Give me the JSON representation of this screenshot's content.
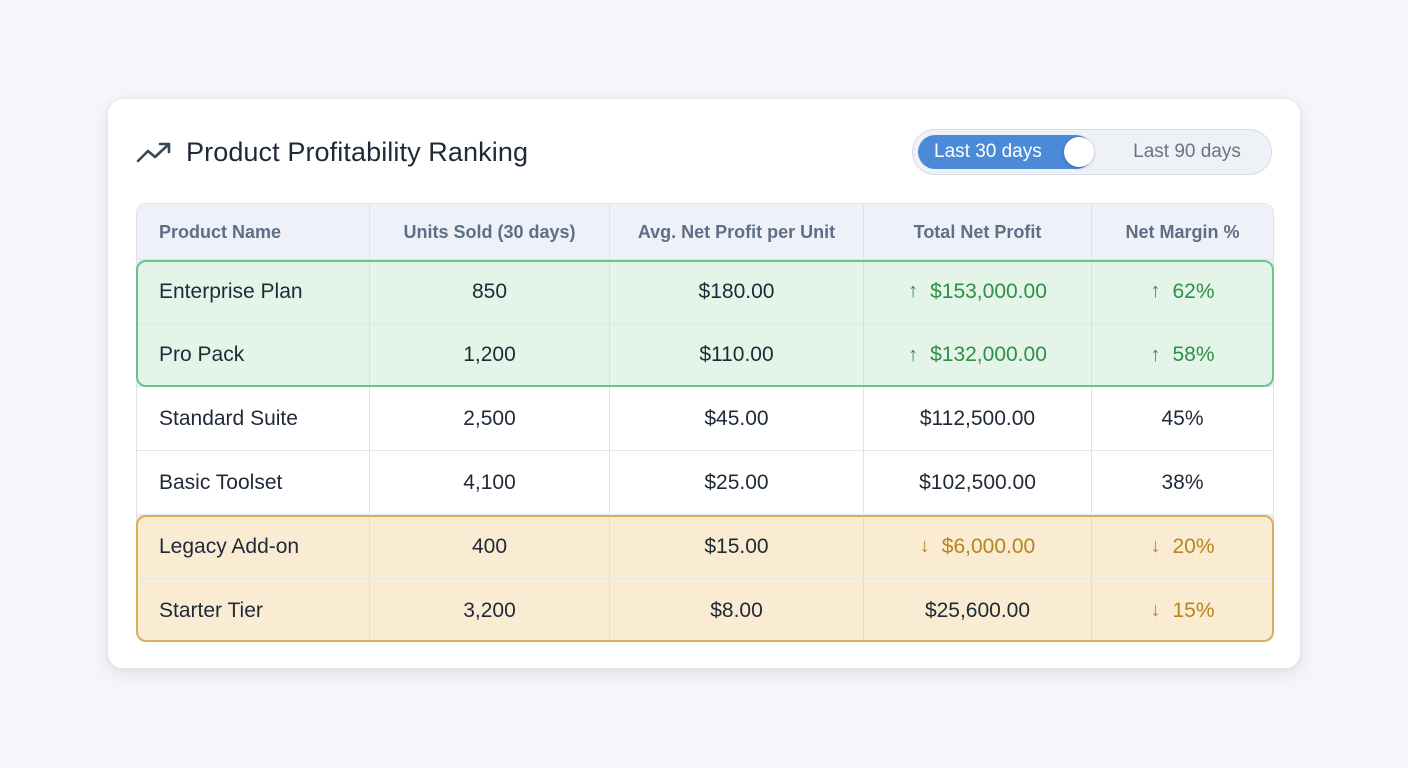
{
  "header": {
    "title": "Product Profitability Ranking",
    "icon": "trending-up-icon",
    "toggle": {
      "active_label": "Last 30 days",
      "inactive_label": "Last 90 days"
    }
  },
  "colors": {
    "accent": "#4a8ad6",
    "positive": "#2e8f46",
    "warning": "#b8841c",
    "green_bg": "#e4f4e8",
    "amber_bg": "#faebd3"
  },
  "table": {
    "columns": [
      "Product Name",
      "Units Sold (30 days)",
      "Avg. Net Profit per Unit",
      "Total Net Profit",
      "Net Margin %"
    ],
    "rows": [
      {
        "name": "Enterprise Plan",
        "units": "850",
        "avg": "$180.00",
        "total": "$153,000.00",
        "margin": "62%",
        "group": "top"
      },
      {
        "name": "Pro Pack",
        "units": "1,200",
        "avg": "$110.00",
        "total": "$132,000.00",
        "margin": "58%",
        "group": "top"
      },
      {
        "name": "Standard Suite",
        "units": "2,500",
        "avg": "$45.00",
        "total": "$112,500.00",
        "margin": "45%",
        "group": "none"
      },
      {
        "name": "Basic Toolset",
        "units": "4,100",
        "avg": "$25.00",
        "total": "$102,500.00",
        "margin": "38%",
        "group": "none"
      },
      {
        "name": "Legacy Add-on",
        "units": "400",
        "avg": "$15.00",
        "total": "$6,000.00",
        "margin": "20%",
        "group": "bottom"
      },
      {
        "name": "Starter Tier",
        "units": "3,200",
        "avg": "$8.00",
        "total": "$25,600.00",
        "margin": "15%",
        "group": "bottom"
      }
    ],
    "arrows": {
      "up": "↑",
      "down": "↓"
    }
  }
}
